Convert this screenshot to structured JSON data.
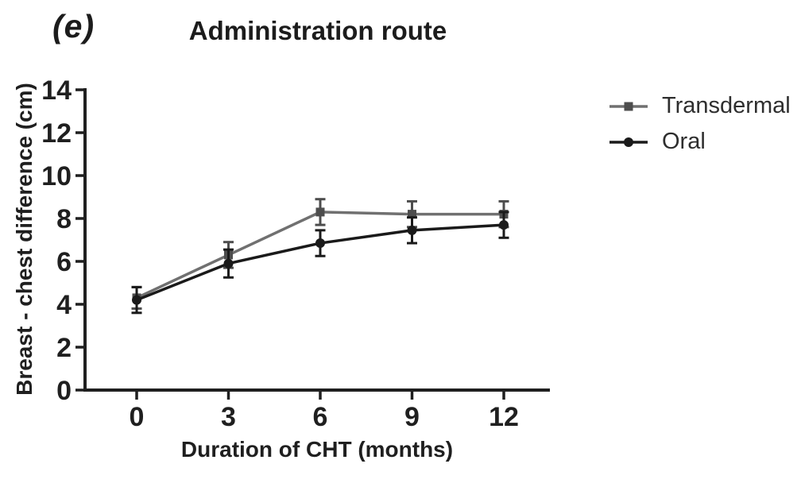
{
  "chart_data": {
    "type": "line",
    "panel_label": "(e)",
    "title": "Administration route",
    "xlabel": "Duration of CHT (months)",
    "ylabel": "Breast - chest difference (cm)",
    "x": [
      0,
      3,
      6,
      9,
      12
    ],
    "x_tick_labels": [
      "0",
      "3",
      "6",
      "9",
      "12"
    ],
    "y_ticks": [
      0,
      2,
      4,
      6,
      8,
      10,
      12,
      14
    ],
    "xlim": [
      0,
      12
    ],
    "ylim": [
      0,
      14
    ],
    "grid": false,
    "legend_position": "right-of-plot",
    "axis_color": "#1f1f1f",
    "series": [
      {
        "name": "Transdermal",
        "marker": "square",
        "line_color": "#707070",
        "marker_color": "#4d4d4d",
        "error_color": "#4d4d4d",
        "values": [
          4.3,
          6.3,
          8.3,
          8.2,
          8.2
        ],
        "errors": [
          0.5,
          0.6,
          0.6,
          0.6,
          0.6
        ]
      },
      {
        "name": "Oral",
        "marker": "circle",
        "line_color": "#1a1a1a",
        "marker_color": "#1a1a1a",
        "error_color": "#1a1a1a",
        "values": [
          4.2,
          5.9,
          6.85,
          7.45,
          7.7
        ],
        "errors": [
          0.6,
          0.65,
          0.6,
          0.6,
          0.6
        ]
      }
    ]
  }
}
